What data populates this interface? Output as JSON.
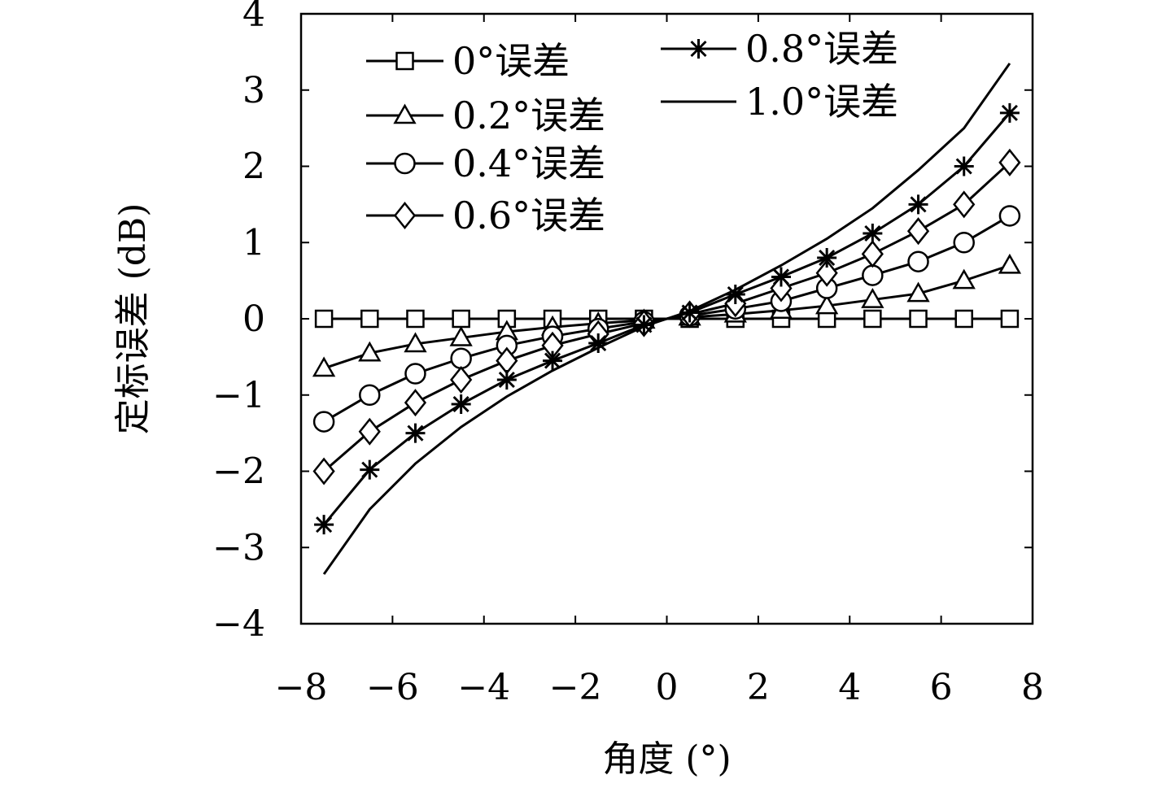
{
  "chart_data": {
    "type": "line",
    "xlabel": "角度 (°)",
    "ylabel": "定标误差 (dB)",
    "xlim": [
      -8,
      8
    ],
    "ylim": [
      -4,
      4
    ],
    "xticks": [
      -8,
      -6,
      -4,
      -2,
      0,
      2,
      4,
      6,
      8
    ],
    "yticks": [
      -4,
      -3,
      -2,
      -1,
      0,
      1,
      2,
      3,
      4
    ],
    "xtick_labels": [
      "−8",
      "−6",
      "−4",
      "−2",
      "0",
      "2",
      "4",
      "6",
      "8"
    ],
    "ytick_labels": [
      "−4",
      "−3",
      "−2",
      "−1",
      "0",
      "1",
      "2",
      "3",
      "4"
    ],
    "legend_placement": "top",
    "grid": false,
    "series": [
      {
        "name": "0°误差",
        "marker": "square",
        "x": [
          -7.5,
          -6.5,
          -5.5,
          -4.5,
          -3.5,
          -2.5,
          -1.5,
          -0.5,
          0.5,
          1.5,
          2.5,
          3.5,
          4.5,
          5.5,
          6.5,
          7.5
        ],
        "y": [
          0,
          0,
          0,
          0,
          0,
          0,
          0,
          0,
          0,
          0,
          0,
          0,
          0,
          0,
          0,
          0
        ]
      },
      {
        "name": "0.2°误差",
        "marker": "triangle",
        "x": [
          -7.5,
          -6.5,
          -5.5,
          -4.5,
          -3.5,
          -2.5,
          -1.5,
          -0.5,
          0.5,
          1.5,
          2.5,
          3.5,
          4.5,
          5.5,
          6.5,
          7.5
        ],
        "y": [
          -0.65,
          -0.45,
          -0.33,
          -0.25,
          -0.17,
          -0.11,
          -0.06,
          -0.02,
          0.02,
          0.06,
          0.11,
          0.17,
          0.25,
          0.33,
          0.5,
          0.7
        ]
      },
      {
        "name": "0.4°误差",
        "marker": "circle",
        "x": [
          -7.5,
          -6.5,
          -5.5,
          -4.5,
          -3.5,
          -2.5,
          -1.5,
          -0.5,
          0.5,
          1.5,
          2.5,
          3.5,
          4.5,
          5.5,
          6.5,
          7.5
        ],
        "y": [
          -1.35,
          -1.0,
          -0.72,
          -0.52,
          -0.35,
          -0.23,
          -0.13,
          -0.04,
          0.04,
          0.13,
          0.23,
          0.4,
          0.57,
          0.75,
          1.0,
          1.35
        ]
      },
      {
        "name": "0.6°误差",
        "marker": "diamond",
        "x": [
          -7.5,
          -6.5,
          -5.5,
          -4.5,
          -3.5,
          -2.5,
          -1.5,
          -0.5,
          0.5,
          1.5,
          2.5,
          3.5,
          4.5,
          5.5,
          6.5,
          7.5
        ],
        "y": [
          -2.0,
          -1.48,
          -1.1,
          -0.8,
          -0.55,
          -0.35,
          -0.2,
          -0.06,
          0.06,
          0.2,
          0.4,
          0.6,
          0.85,
          1.15,
          1.5,
          2.05
        ]
      },
      {
        "name": "0.8°误差",
        "marker": "star",
        "x": [
          -7.5,
          -6.5,
          -5.5,
          -4.5,
          -3.5,
          -2.5,
          -1.5,
          -0.5,
          0.5,
          1.5,
          2.5,
          3.5,
          4.5,
          5.5,
          6.5,
          7.5
        ],
        "y": [
          -2.7,
          -1.98,
          -1.5,
          -1.12,
          -0.8,
          -0.55,
          -0.32,
          -0.08,
          0.08,
          0.32,
          0.55,
          0.8,
          1.12,
          1.5,
          2.0,
          2.7
        ]
      },
      {
        "name": "1.0°误差",
        "marker": "none",
        "x": [
          -7.5,
          -6.5,
          -5.5,
          -4.5,
          -3.5,
          -2.5,
          -1.5,
          -0.5,
          0.5,
          1.5,
          2.5,
          3.5,
          4.5,
          5.5,
          6.5,
          7.5
        ],
        "y": [
          -3.35,
          -2.5,
          -1.9,
          -1.42,
          -1.02,
          -0.68,
          -0.38,
          -0.1,
          0.1,
          0.38,
          0.7,
          1.05,
          1.45,
          1.95,
          2.5,
          3.35
        ]
      }
    ]
  }
}
